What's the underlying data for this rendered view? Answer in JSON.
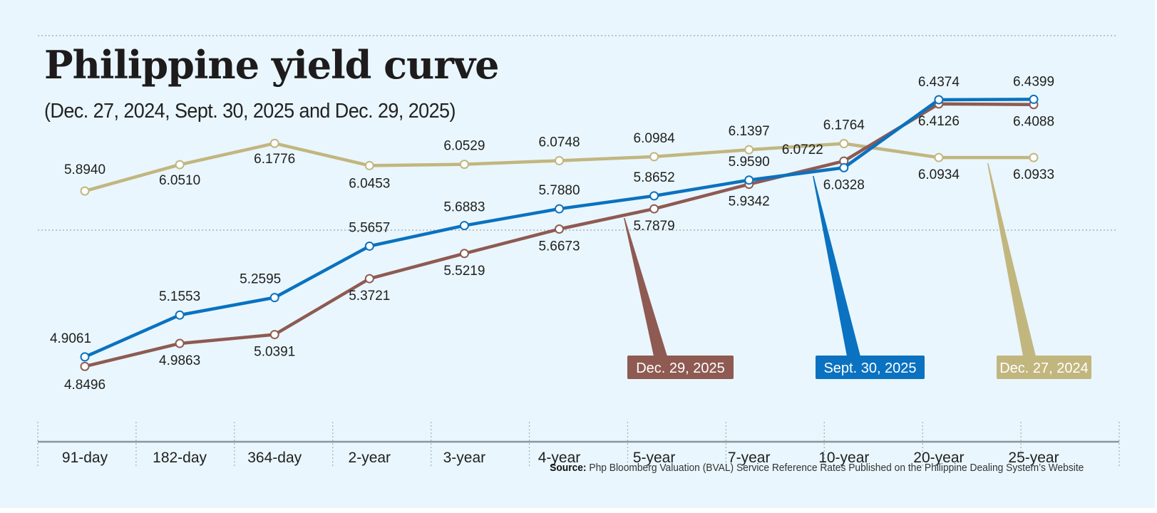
{
  "header": {
    "title": "Philippine yield curve",
    "subtitle": "(Dec. 27, 2024, Sept. 30, 2025 and Dec. 29, 2025)"
  },
  "footer": {
    "source_label": "Source:",
    "source_text": "Php Bloomberg Valuation (BVAL) Service Reference Rates Published on the Philippine Dealing System’s Website"
  },
  "colors": {
    "background": "#e9f6fd",
    "dec_27_2024": "#c2b67f",
    "sept_30_2025": "#0a72c0",
    "dec_29_2025": "#8e5a52"
  },
  "chart_data": {
    "type": "line",
    "title": "Philippine yield curve",
    "subtitle": "(Dec. 27, 2024, Sept. 30, 2025 and Dec. 29, 2025)",
    "xlabel": "",
    "ylabel": "",
    "categories": [
      "91-day",
      "182-day",
      "364-day",
      "2-year",
      "3-year",
      "4-year",
      "5-year",
      "7-year",
      "10-year",
      "20-year",
      "25-year"
    ],
    "ylim": [
      4.6,
      6.7
    ],
    "grid": "dotted horizontal reference lines",
    "legend": "callout labels bottom-right",
    "series": [
      {
        "name": "Dec. 27, 2024",
        "color": "#c2b67f",
        "values": [
          5.894,
          6.051,
          6.1776,
          6.0453,
          6.0529,
          6.0748,
          6.0984,
          6.1397,
          6.1764,
          6.0934,
          6.0933
        ],
        "labels": [
          "5.8940",
          "6.0510",
          "6.1776",
          "6.0453",
          "6.0529",
          "6.0748",
          "6.0984",
          "6.1397",
          "6.1764",
          "6.0934",
          "6.0933"
        ]
      },
      {
        "name": "Sept. 30, 2025",
        "color": "#0a72c0",
        "values": [
          4.9061,
          5.1553,
          5.2595,
          5.5657,
          5.6883,
          5.788,
          5.8652,
          5.959,
          6.0328,
          6.4374,
          6.4399
        ],
        "labels": [
          "4.9061",
          "5.1553",
          "5.2595",
          "5.5657",
          "5.6883",
          "5.7880",
          "5.8652",
          "5.9590",
          "6.0328",
          "6.4374",
          "6.4399"
        ]
      },
      {
        "name": "Dec. 29, 2025",
        "color": "#8e5a52",
        "values": [
          4.8496,
          4.9863,
          5.0391,
          5.3721,
          5.5219,
          5.6673,
          5.7879,
          5.9342,
          6.0722,
          6.4126,
          6.4088
        ],
        "labels": [
          "4.8496",
          "4.9863",
          "5.0391",
          "5.3721",
          "5.5219",
          "5.6673",
          "5.7879",
          "5.9342",
          "6.0722",
          "6.4126",
          "6.4088"
        ]
      }
    ],
    "callouts": [
      {
        "series": "Dec. 29, 2025",
        "text": "Dec. 29, 2025"
      },
      {
        "series": "Sept. 30, 2025",
        "text": "Sept. 30, 2025"
      },
      {
        "series": "Dec. 27, 2024",
        "text": "Dec. 27, 2024"
      }
    ]
  }
}
